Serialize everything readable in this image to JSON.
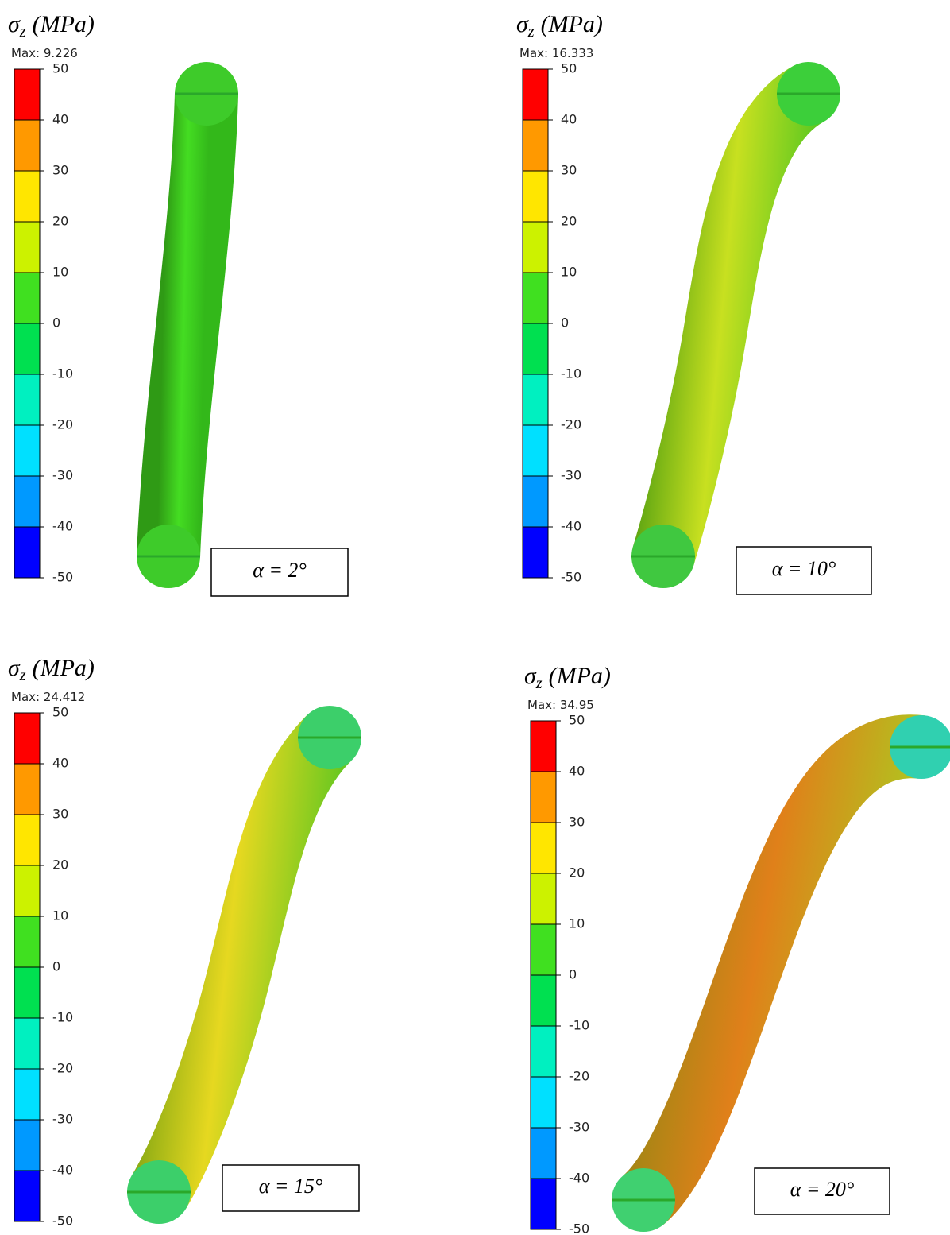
{
  "panels": [
    {
      "title": {
        "symbol": "σ",
        "subscript": "z",
        "unit": "(MPa)"
      },
      "max": "Max: 9.226",
      "scale": [
        50,
        40,
        30,
        20,
        10,
        0,
        -10,
        -20,
        -30,
        -40,
        -50
      ],
      "label": "α = 2°"
    },
    {
      "title": {
        "symbol": "σ",
        "subscript": "z",
        "unit": "(MPa)"
      },
      "max": "Max: 16.333",
      "scale": [
        50,
        40,
        30,
        20,
        10,
        0,
        -10,
        -20,
        -30,
        -40,
        -50
      ],
      "label": "α = 10°"
    },
    {
      "title": {
        "symbol": "σ",
        "subscript": "z",
        "unit": "(MPa)"
      },
      "max": "Max: 24.412",
      "scale": [
        50,
        40,
        30,
        20,
        10,
        0,
        -10,
        -20,
        -30,
        -40,
        -50
      ],
      "label": "α = 15°"
    },
    {
      "title": {
        "symbol": "σ",
        "subscript": "z",
        "unit": "(MPa)"
      },
      "max": "Max: 34.95",
      "scale": [
        50,
        40,
        30,
        20,
        10,
        0,
        -10,
        -20,
        -30,
        -40,
        -50
      ],
      "label": "α = 20°"
    }
  ]
}
